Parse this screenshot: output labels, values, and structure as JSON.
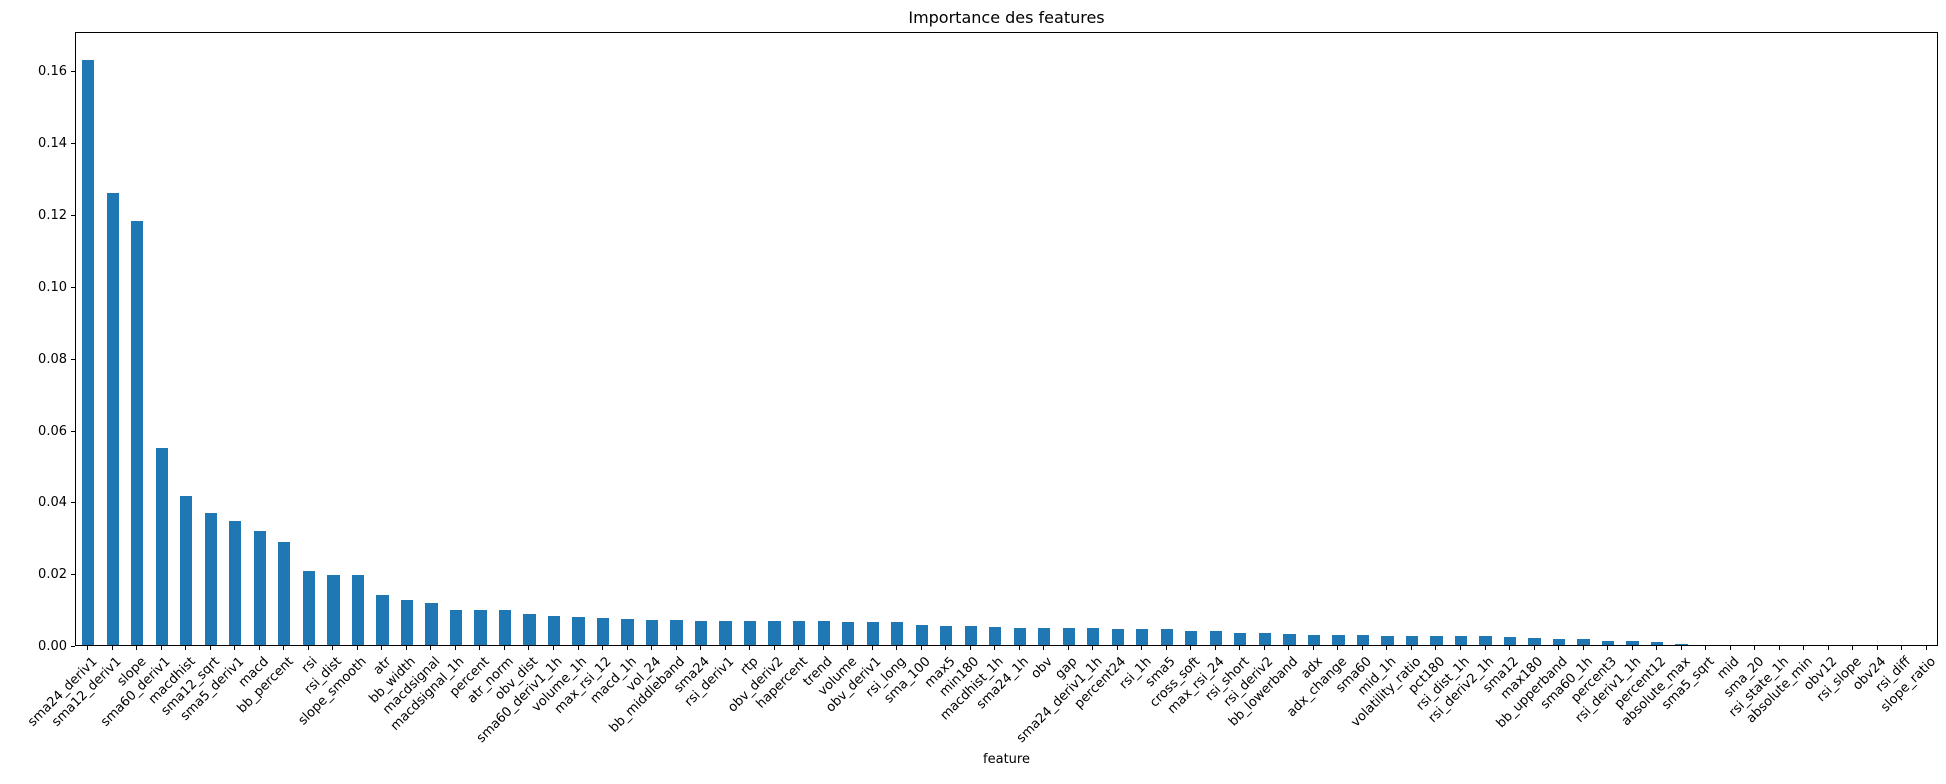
{
  "chart_data": {
    "type": "bar",
    "title": "Importance des features",
    "xlabel": "feature",
    "ylabel": "",
    "bar_color": "#1f77b4",
    "ylim": [
      0,
      0.171
    ],
    "yticks": [
      0.0,
      0.02,
      0.04,
      0.06,
      0.08,
      0.1,
      0.12,
      0.14,
      0.16
    ],
    "grid": false,
    "legend": null,
    "categories": [
      "sma24_deriv1",
      "sma12_deriv1",
      "slope",
      "sma60_deriv1",
      "macdhist",
      "sma12_sqrt",
      "sma5_deriv1",
      "macd",
      "bb_percent",
      "rsi",
      "rsi_dist",
      "slope_smooth",
      "atr",
      "bb_width",
      "macdsignal",
      "macdsignal_1h",
      "percent",
      "atr_norm",
      "obv_dist",
      "sma60_deriv1_1h",
      "volume_1h",
      "max_rsi_12",
      "macd_1h",
      "vol_24",
      "bb_middleband",
      "sma24",
      "rsi_deriv1",
      "rtp",
      "obv_deriv2",
      "hapercent",
      "trend",
      "volume",
      "obv_deriv1",
      "rsi_long",
      "sma_100",
      "max5",
      "min180",
      "macdhist_1h",
      "sma24_1h",
      "obv",
      "gap",
      "sma24_deriv1_1h",
      "percent24",
      "rsi_1h",
      "sma5",
      "cross_soft",
      "max_rsi_24",
      "rsi_short",
      "rsi_deriv2",
      "bb_lowerband",
      "adx",
      "adx_change",
      "sma60",
      "mid_1h",
      "volatility_ratio",
      "pct180",
      "rsi_dist_1h",
      "rsi_deriv2_1h",
      "sma12",
      "max180",
      "bb_upperband",
      "sma60_1h",
      "percent3",
      "rsi_deriv1_1h",
      "percent12",
      "absolute_max",
      "sma5_sqrt",
      "mid",
      "sma_20",
      "rsi_state_1h",
      "absolute_min",
      "obv12",
      "rsi_slope",
      "obv24",
      "rsi_diff",
      "slope_ratio"
    ],
    "values": [
      0.163,
      0.126,
      0.118,
      0.055,
      0.0414,
      0.0367,
      0.0344,
      0.0317,
      0.0288,
      0.0206,
      0.0196,
      0.0195,
      0.0139,
      0.0125,
      0.0117,
      0.0098,
      0.0097,
      0.0097,
      0.0086,
      0.0081,
      0.0079,
      0.0074,
      0.0073,
      0.007,
      0.0069,
      0.0068,
      0.0067,
      0.0067,
      0.0066,
      0.0066,
      0.0066,
      0.0065,
      0.0064,
      0.0063,
      0.0056,
      0.0054,
      0.0052,
      0.0051,
      0.0048,
      0.0047,
      0.0047,
      0.0046,
      0.0045,
      0.0045,
      0.0044,
      0.0038,
      0.0038,
      0.0034,
      0.0033,
      0.0032,
      0.0028,
      0.0028,
      0.0027,
      0.0026,
      0.0026,
      0.0026,
      0.0025,
      0.0024,
      0.0023,
      0.0019,
      0.0018,
      0.0018,
      0.0011,
      0.001,
      0.0009,
      0.0004,
      0.0001,
      0.0,
      0.0,
      0.0,
      0.0,
      0.0,
      0.0,
      0.0,
      0.0,
      0.0
    ]
  }
}
